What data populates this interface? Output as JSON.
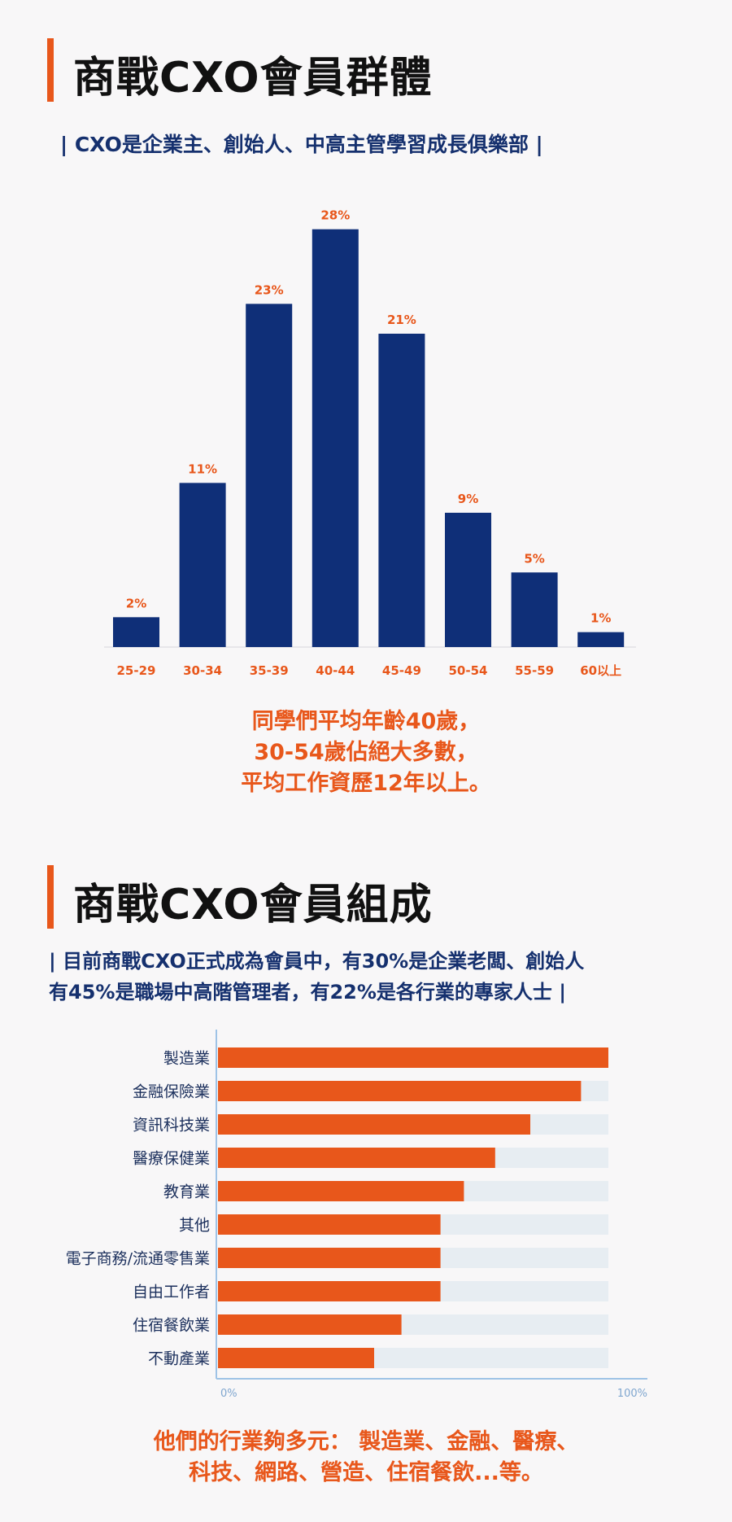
{
  "section1": {
    "title": "商戰CXO會員群體",
    "subtitle": "|  CXO是企業主、創始人、中高主管學習成長俱樂部  |",
    "summary": [
      "同學們平均年齡40歲，",
      "30-54歲佔絕大多數，",
      "平均工作資歷12年以上。"
    ]
  },
  "section2": {
    "title": "商戰CXO會員組成",
    "subtitle": [
      "| 目前商戰CXO正式成為會員中，有30%是企業老闆、創始人",
      "有45%是職場中高階管理者，有22%是各行業的專家人士  |"
    ],
    "summary": [
      "他們的行業夠多元： 製造業、金融、醫療、",
      "科技、網路、營造、住宿餐飲...等。"
    ]
  },
  "colors": {
    "accent": "#e8571b",
    "navy": "#0f2f78",
    "track": "#e7edf2",
    "axis": "#9ec3e6"
  },
  "chart_data": [
    {
      "type": "bar",
      "categories": [
        "25-29",
        "30-34",
        "35-39",
        "40-44",
        "45-49",
        "50-54",
        "55-59",
        "60以上"
      ],
      "values": [
        2,
        11,
        23,
        28,
        21,
        9,
        5,
        1
      ],
      "value_labels": [
        "2%",
        "11%",
        "23%",
        "28%",
        "21%",
        "9%",
        "5%",
        "1%"
      ],
      "ylim": [
        0,
        30
      ],
      "grid": false
    },
    {
      "type": "bar",
      "orientation": "horizontal",
      "categories": [
        "製造業",
        "金融保險業",
        "資訊科技業",
        "醫療保健業",
        "教育業",
        "其他",
        "電子商務/流通零售業",
        "自由工作者",
        "住宿餐飲業",
        "不動產業"
      ],
      "values": [
        100,
        93,
        80,
        71,
        63,
        57,
        57,
        57,
        47,
        40
      ],
      "xlim": [
        0,
        100
      ],
      "x_tick_labels": [
        "0%",
        "100%"
      ],
      "grid": false
    }
  ]
}
